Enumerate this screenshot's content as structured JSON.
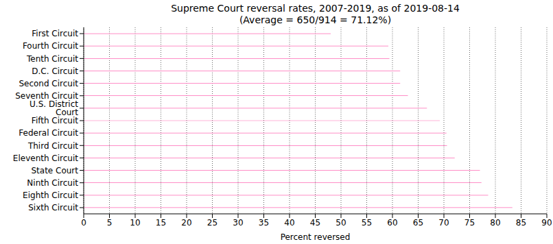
{
  "chart_data": {
    "type": "bar",
    "title": "Supreme Court reversal rates, 2007-2019, as of 2019-08-14\n(Average = 650/914 = 71.12%)",
    "orientation": "horizontal",
    "categories": [
      "First Circuit",
      "Fourth Circuit",
      "Tenth Circuit",
      "D.C. Circuit",
      "Second Circuit",
      "Seventh Circuit",
      "U.S. District Court",
      "Fifth Circuit",
      "Federal Circuit",
      "Third Circuit",
      "Eleventh Circuit",
      "State Court",
      "Ninth Circuit",
      "Eighth Circuit",
      "Sixth Circuit"
    ],
    "values": [
      48.0,
      59.2,
      59.4,
      61.5,
      61.5,
      63.0,
      66.7,
      69.2,
      70.5,
      70.6,
      72.1,
      77.0,
      77.3,
      78.6,
      83.3
    ],
    "color": "#ff69b4",
    "x_label": "Percent reversed",
    "xlim": [
      0,
      90
    ],
    "xticks": [
      0,
      5,
      10,
      15,
      20,
      25,
      30,
      35,
      40,
      45,
      50,
      55,
      60,
      65,
      70,
      75,
      80,
      85,
      90
    ],
    "grid": true
  }
}
